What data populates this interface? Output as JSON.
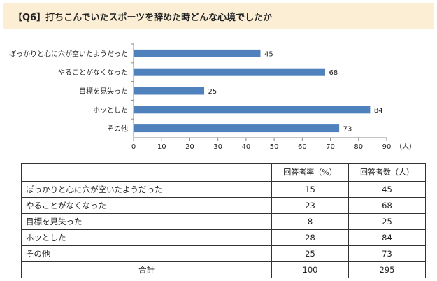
{
  "title": "【Q6】打ちこんでいたスポーツを辞めた時どんな心境でしたか",
  "chart_data": {
    "type": "bar",
    "orientation": "horizontal",
    "categories": [
      "ぽっかりと心に穴が空いたようだった",
      "やることがなくなった",
      "目標を見失った",
      "ホッとした",
      "その他"
    ],
    "values": [
      45,
      68,
      25,
      84,
      73
    ],
    "unit_label": "（人）",
    "xlim": [
      0,
      90
    ],
    "xticks": [
      0,
      10,
      20,
      30,
      40,
      50,
      60,
      70,
      80,
      90
    ],
    "grid": false,
    "bar_color": "#4f81bd"
  },
  "table": {
    "headers": [
      "",
      "回答者率（%）",
      "回答者数（人）"
    ],
    "rows": [
      {
        "label": "ぽっかりと心に穴が空いたようだった",
        "rate": "15",
        "count": "45"
      },
      {
        "label": "やることがなくなった",
        "rate": "23",
        "count": "68"
      },
      {
        "label": "目標を見失った",
        "rate": "8",
        "count": "25"
      },
      {
        "label": "ホッとした",
        "rate": "28",
        "count": "84"
      },
      {
        "label": "その他",
        "rate": "25",
        "count": "73"
      }
    ],
    "total": {
      "label": "合計",
      "rate": "100",
      "count": "295"
    }
  }
}
